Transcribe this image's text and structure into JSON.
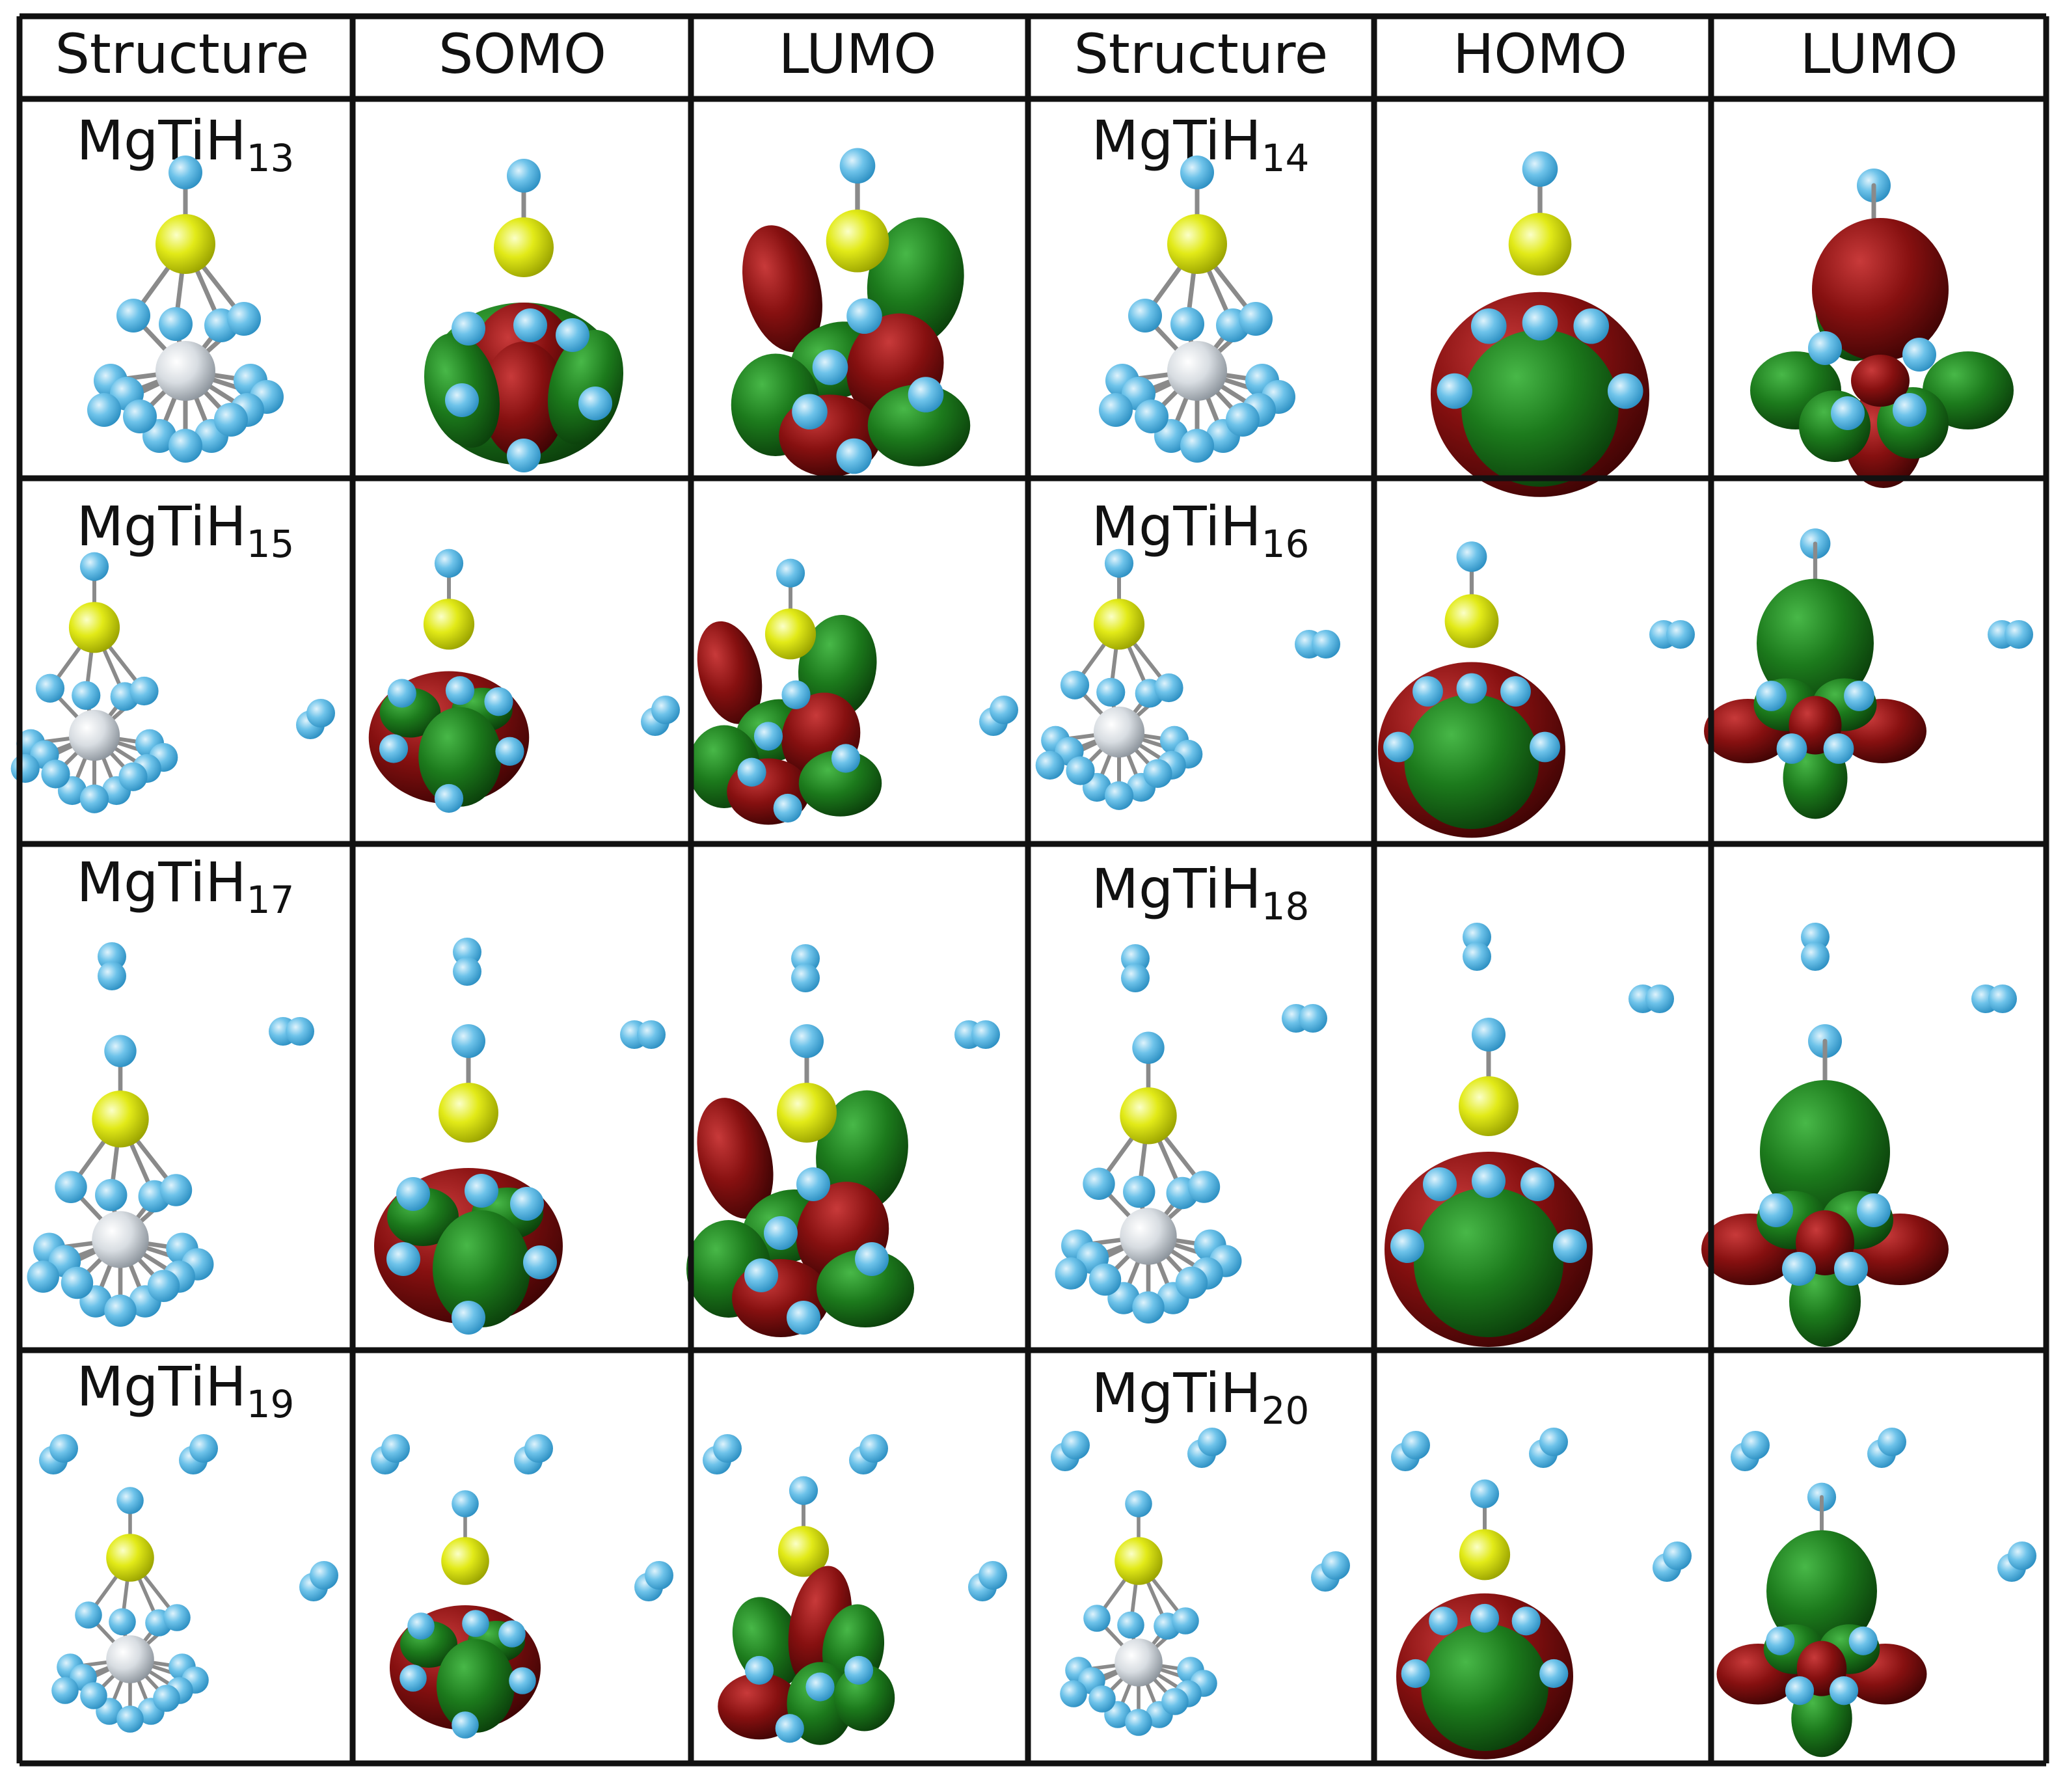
{
  "table": {
    "headers": [
      "Structure",
      "SOMO",
      "LUMO",
      "Structure",
      "HOMO",
      "LUMO"
    ],
    "rows": [
      {
        "left": {
          "formula": "MgTiH",
          "sub": "13"
        },
        "right": {
          "formula": "MgTiH",
          "sub": "14"
        }
      },
      {
        "left": {
          "formula": "MgTiH",
          "sub": "15"
        },
        "right": {
          "formula": "MgTiH",
          "sub": "16"
        }
      },
      {
        "left": {
          "formula": "MgTiH",
          "sub": "17"
        },
        "right": {
          "formula": "MgTiH",
          "sub": "18"
        }
      },
      {
        "left": {
          "formula": "MgTiH",
          "sub": "19"
        },
        "right": {
          "formula": "MgTiH",
          "sub": "20"
        }
      }
    ]
  },
  "colors": {
    "grid": "#111111",
    "hydrogen": "#6ec3ea",
    "magnesium": "#e2ea18",
    "titanium": "#d8dde2",
    "bond": "#8a8a8a",
    "lobe_green": "#1c7a1c",
    "lobe_red": "#861010"
  }
}
